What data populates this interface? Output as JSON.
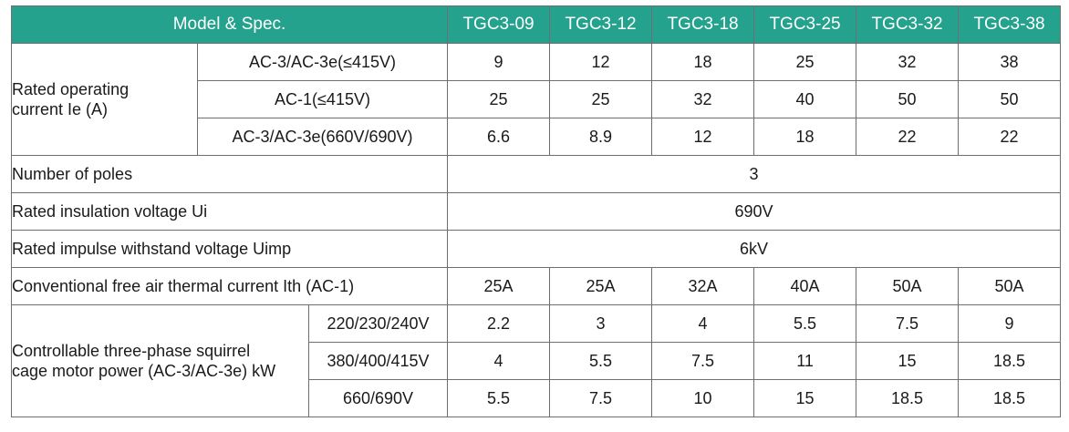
{
  "header": {
    "spec_label": "Model & Spec.",
    "models": [
      "TGC3-09",
      "TGC3-12",
      "TGC3-18",
      "TGC3-25",
      "TGC3-32",
      "TGC3-38"
    ]
  },
  "rated_current": {
    "label_line1": "Rated operating",
    "label_line2": "current Ie (A)",
    "rows": [
      {
        "sub": "AC-3/AC-3e(≤415V)",
        "values": [
          "9",
          "12",
          "18",
          "25",
          "32",
          "38"
        ]
      },
      {
        "sub": "AC-1(≤415V)",
        "values": [
          "25",
          "25",
          "32",
          "40",
          "50",
          "50"
        ]
      },
      {
        "sub": "AC-3/AC-3e(660V/690V)",
        "values": [
          "6.6",
          "8.9",
          "12",
          "18",
          "22",
          "22"
        ]
      }
    ]
  },
  "poles": {
    "label": "Number of poles",
    "value": "3"
  },
  "insulation": {
    "label": "Rated insulation voltage Ui",
    "value": "690V"
  },
  "impulse": {
    "label": "Rated impulse withstand voltage Uimp",
    "value": "6kV"
  },
  "thermal": {
    "label": "Conventional free air thermal current Ith (AC-1)",
    "values": [
      "25A",
      "25A",
      "32A",
      "40A",
      "50A",
      "50A"
    ]
  },
  "motor_power": {
    "label_line1": "Controllable three-phase squirrel",
    "label_line2": "cage motor power (AC-3/AC-3e) kW",
    "rows": [
      {
        "sub": "220/230/240V",
        "values": [
          "2.2",
          "3",
          "4",
          "5.5",
          "7.5",
          "9"
        ]
      },
      {
        "sub": "380/400/415V",
        "values": [
          "4",
          "5.5",
          "7.5",
          "11",
          "15",
          "18.5"
        ]
      },
      {
        "sub": "660/690V",
        "values": [
          "5.5",
          "7.5",
          "10",
          "15",
          "18.5",
          "18.5"
        ]
      }
    ]
  },
  "colors": {
    "header_bg": "#24a28e",
    "header_text": "#ffffff",
    "border": "#6f6f6f"
  }
}
